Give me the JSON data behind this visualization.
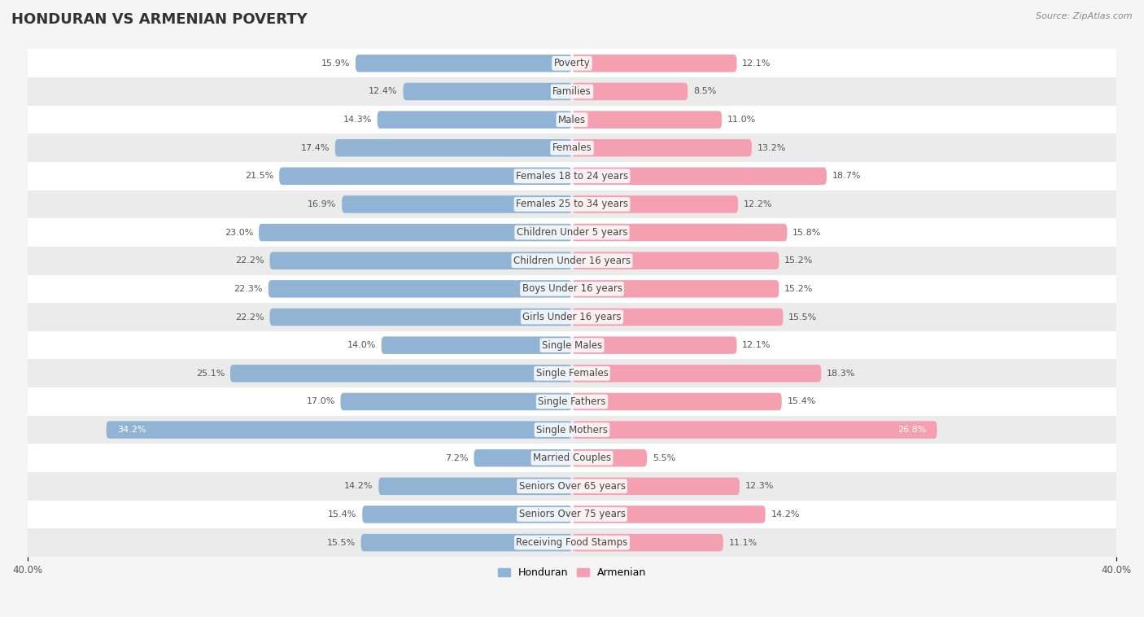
{
  "title": "HONDURAN VS ARMENIAN POVERTY",
  "source": "Source: ZipAtlas.com",
  "categories": [
    "Poverty",
    "Families",
    "Males",
    "Females",
    "Females 18 to 24 years",
    "Females 25 to 34 years",
    "Children Under 5 years",
    "Children Under 16 years",
    "Boys Under 16 years",
    "Girls Under 16 years",
    "Single Males",
    "Single Females",
    "Single Fathers",
    "Single Mothers",
    "Married Couples",
    "Seniors Over 65 years",
    "Seniors Over 75 years",
    "Receiving Food Stamps"
  ],
  "honduran": [
    15.9,
    12.4,
    14.3,
    17.4,
    21.5,
    16.9,
    23.0,
    22.2,
    22.3,
    22.2,
    14.0,
    25.1,
    17.0,
    34.2,
    7.2,
    14.2,
    15.4,
    15.5
  ],
  "armenian": [
    12.1,
    8.5,
    11.0,
    13.2,
    18.7,
    12.2,
    15.8,
    15.2,
    15.2,
    15.5,
    12.1,
    18.3,
    15.4,
    26.8,
    5.5,
    12.3,
    14.2,
    11.1
  ],
  "honduran_color": "#92b4d4",
  "armenian_color": "#f4a0b0",
  "bar_height": 0.62,
  "max_val": 40.0,
  "background_color": "#f5f5f5",
  "row_color_even": "#ffffff",
  "row_color_odd": "#ebebeb",
  "title_fontsize": 13,
  "label_fontsize": 8.5,
  "value_fontsize": 8,
  "legend_fontsize": 9,
  "axis_label_fontsize": 8.5
}
